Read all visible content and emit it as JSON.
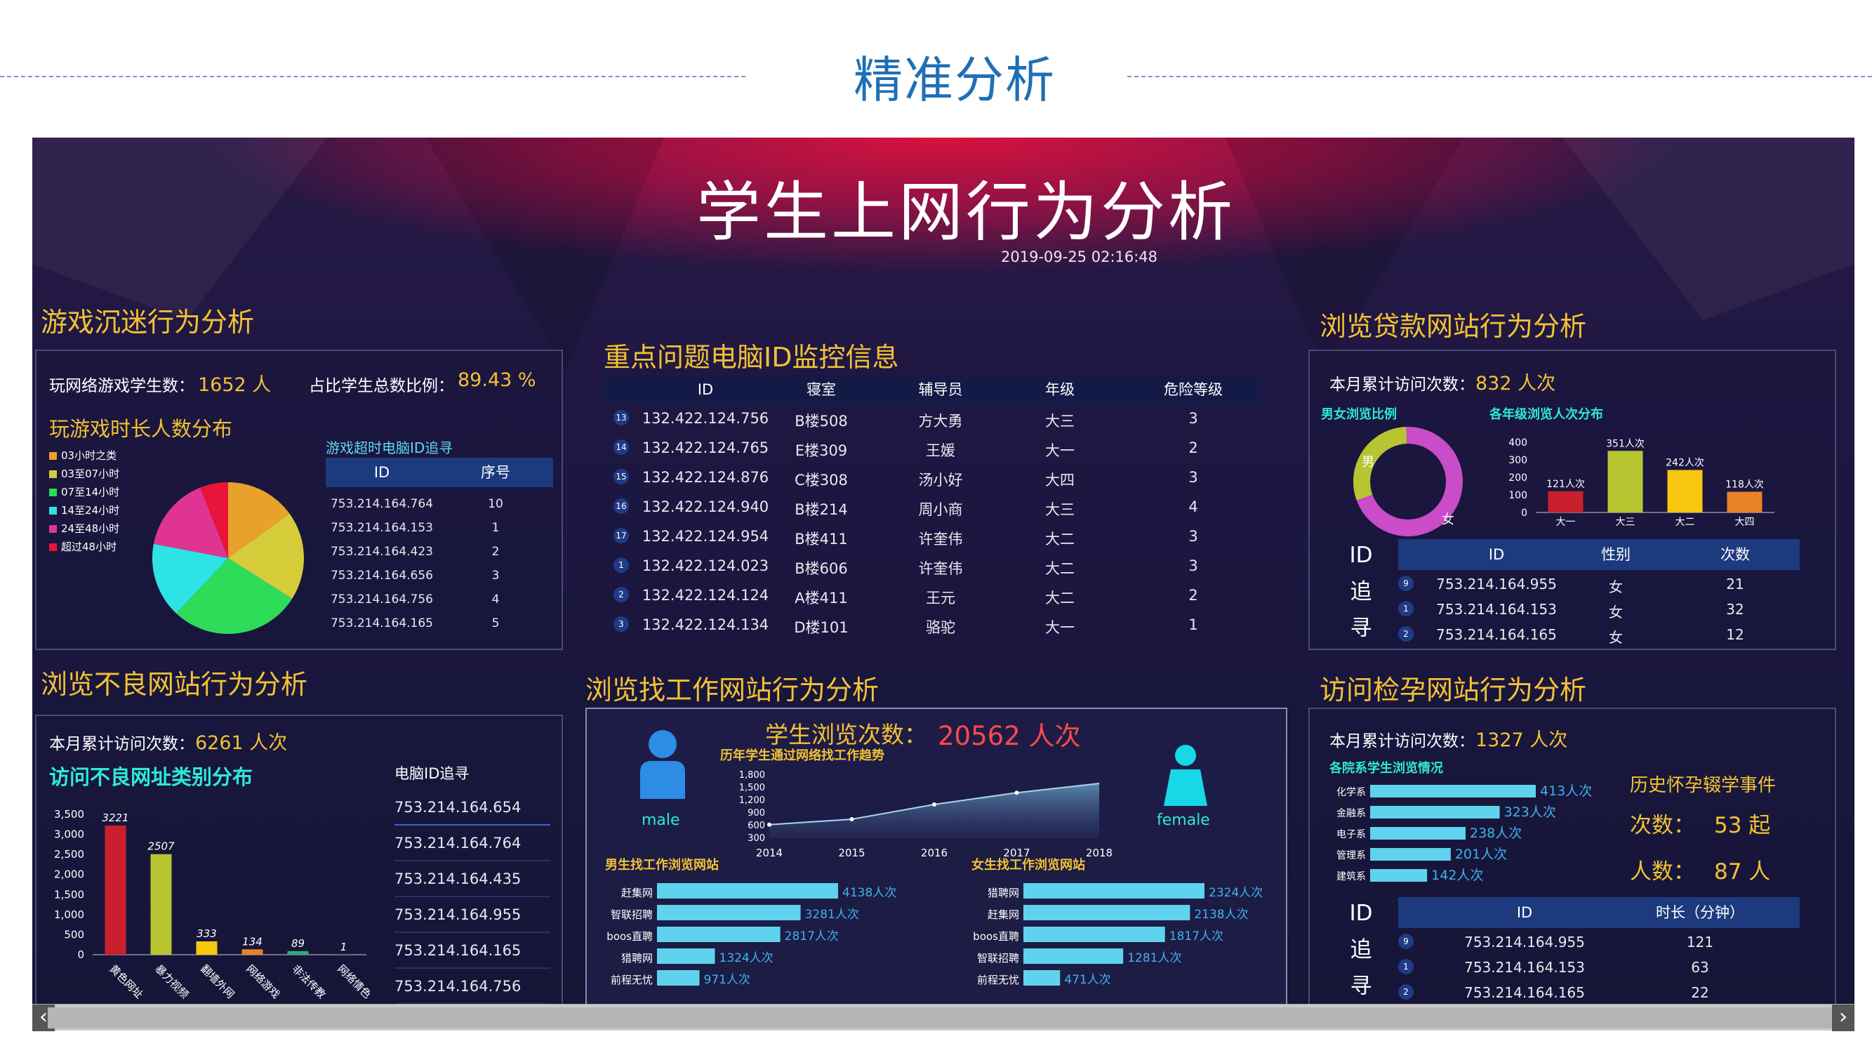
{
  "slide": {
    "title": "精准分析"
  },
  "dashboard": {
    "title": "学生上网行为分析",
    "timestamp": "2019-09-25 02:16:48"
  },
  "game": {
    "section_title": "游戏沉迷行为分析",
    "students_label": "玩网络游戏学生数：",
    "students_value": "1652  人",
    "ratio_label": "占比学生总数比例：",
    "ratio_value": "89.43  %",
    "pie_title": "玩游戏时长人数分布",
    "legend": [
      {
        "label": "03小时之类",
        "color": "#e8a12a"
      },
      {
        "label": "03至07小时",
        "color": "#d6cc3a"
      },
      {
        "label": "07至14小时",
        "color": "#2fdc5a"
      },
      {
        "label": "14至24小时",
        "color": "#2de3e6"
      },
      {
        "label": "24至48小时",
        "color": "#e03494"
      },
      {
        "label": "超过48小时",
        "color": "#e8143a"
      }
    ],
    "pie_values": [
      15,
      19,
      28,
      16,
      16,
      6
    ],
    "trace_title": "游戏超时电脑ID追寻",
    "trace_headers": [
      "ID",
      "序号"
    ],
    "trace_rows": [
      [
        "753.214.164.764",
        "10"
      ],
      [
        "753.214.164.153",
        "1"
      ],
      [
        "753.214.164.423",
        "2"
      ],
      [
        "753.214.164.656",
        "3"
      ],
      [
        "753.214.164.756",
        "4"
      ],
      [
        "753.214.164.165",
        "5"
      ]
    ]
  },
  "monitor": {
    "section_title": "重点问题电脑ID监控信息",
    "headers": [
      "ID",
      "寝室",
      "辅导员",
      "年级",
      "危险等级"
    ],
    "rows": [
      {
        "no": "13",
        "id": "132.422.124.756",
        "room": "B楼508",
        "tutor": "方大勇",
        "grade": "大三",
        "level": "3"
      },
      {
        "no": "14",
        "id": "132.422.124.765",
        "room": "E楼309",
        "tutor": "王媛",
        "grade": "大一",
        "level": "2"
      },
      {
        "no": "15",
        "id": "132.422.124.876",
        "room": "C楼308",
        "tutor": "汤小好",
        "grade": "大四",
        "level": "3"
      },
      {
        "no": "16",
        "id": "132.422.124.940",
        "room": "B楼214",
        "tutor": "周小商",
        "grade": "大三",
        "level": "4"
      },
      {
        "no": "17",
        "id": "132.422.124.954",
        "room": "B楼411",
        "tutor": "许奎伟",
        "grade": "大二",
        "level": "3"
      },
      {
        "no": "1",
        "id": "132.422.124.023",
        "room": "B楼606",
        "tutor": "许奎伟",
        "grade": "大二",
        "level": "3"
      },
      {
        "no": "2",
        "id": "132.422.124.124",
        "room": "A楼411",
        "tutor": "王元",
        "grade": "大二",
        "level": "2"
      },
      {
        "no": "3",
        "id": "132.422.124.134",
        "room": "D楼101",
        "tutor": "骆驼",
        "grade": "大一",
        "level": "1"
      }
    ]
  },
  "loan": {
    "section_title": "浏览贷款网站行为分析",
    "visits_label": "本月累计访问次数：",
    "visits_value": "832  人次",
    "gender_title": "男女浏览比例",
    "male_label": "男",
    "female_label": "女",
    "gender_values": [
      30,
      70
    ],
    "grade_title": "各年级浏览人次分布",
    "trace_side": [
      "ID",
      "追",
      "寻"
    ],
    "trace_headers": [
      "ID",
      "性别",
      "次数"
    ],
    "trace_rows": [
      {
        "no": "9",
        "id": "753.214.164.955",
        "sex": "女",
        "count": "21"
      },
      {
        "no": "1",
        "id": "753.214.164.153",
        "sex": "女",
        "count": "32"
      },
      {
        "no": "2",
        "id": "753.214.164.165",
        "sex": "女",
        "count": "12"
      }
    ]
  },
  "bad": {
    "section_title": "浏览不良网站行为分析",
    "visits_label": "本月累计访问次数：",
    "visits_value": "6261  人次",
    "chart_title": "访问不良网址类别分布",
    "trace_title": "电脑ID追寻",
    "trace_rows": [
      "753.214.164.654",
      "753.214.164.764",
      "753.214.164.435",
      "753.214.164.955",
      "753.214.164.165",
      "753.214.164.756"
    ]
  },
  "job": {
    "section_title": "浏览找工作网站行为分析",
    "visits_label": "学生浏览次数：",
    "visits_value": "20562  人次",
    "trend_title": "历年学生通过网络找工作趋势",
    "male_caption": "male",
    "female_caption": "female",
    "male_sites_title": "男生找工作浏览网站",
    "female_sites_title": "女生找工作浏览网站"
  },
  "pregnancy": {
    "section_title": "访问检孕网站行为分析",
    "visits_label": "本月累计访问次数：",
    "visits_value": "1327  人次",
    "dept_title": "各院系学生浏览情况",
    "history_title": "历史怀孕辍学事件",
    "events_label": "次数：",
    "events_value": "53  起",
    "people_label": "人数：",
    "people_value": "87  人",
    "trace_side": [
      "ID",
      "追",
      "寻"
    ],
    "trace_headers": [
      "ID",
      "时长（分钟）"
    ],
    "trace_rows": [
      {
        "no": "9",
        "id": "753.214.164.955",
        "duration": "121"
      },
      {
        "no": "1",
        "id": "753.214.164.153",
        "duration": "63"
      },
      {
        "no": "2",
        "id": "753.214.164.165",
        "duration": "22"
      }
    ]
  },
  "chart_data": [
    {
      "type": "bar",
      "categories": [
        "大一",
        "大三",
        "大二",
        "大四"
      ],
      "values": [
        121,
        351,
        242,
        118
      ],
      "data_labels": [
        "121人次",
        "351人次",
        "242人次",
        "118人次"
      ],
      "colors": [
        "#c9202e",
        "#b6c530",
        "#f8c60f",
        "#e8832a"
      ],
      "yticks": [
        "400",
        "300",
        "200",
        "100",
        "0"
      ],
      "ylim": [
        0,
        400
      ]
    },
    {
      "type": "bar",
      "categories": [
        "黄色网址",
        "暴力视频",
        "翻墙外网",
        "网络游戏",
        "非法传教",
        "网络情色"
      ],
      "values": [
        3221,
        2507,
        333,
        134,
        89,
        1
      ],
      "colors": [
        "#c9202e",
        "#b6c530",
        "#f8c60f",
        "#e8832a",
        "#27b27b",
        "#777777"
      ],
      "yticks": [
        "3,500",
        "3,000",
        "2,500",
        "2,000",
        "1,500",
        "1,000",
        "500",
        "0"
      ],
      "ylim": [
        0,
        3500
      ]
    },
    {
      "type": "area",
      "x": [
        "2014",
        "2015",
        "2016",
        "2017",
        "2018"
      ],
      "values": [
        620,
        750,
        1100,
        1380,
        1600
      ],
      "yticks": [
        "1,800",
        "1,500",
        "1,200",
        "900",
        "600",
        "300"
      ],
      "ylim": [
        300,
        1800
      ]
    },
    {
      "type": "bar",
      "orientation": "horizontal",
      "categories": [
        "赶集网",
        "智联招聘",
        "boos直聘",
        "猎聘网",
        "前程无忧"
      ],
      "values": [
        4138,
        3281,
        2817,
        1324,
        971
      ],
      "data_labels": [
        "4138人次",
        "3281人次",
        "2817人次",
        "1324人次",
        "971人次"
      ]
    },
    {
      "type": "bar",
      "orientation": "horizontal",
      "categories": [
        "猎聘网",
        "赶集网",
        "boos直聘",
        "智联招聘",
        "前程无忧"
      ],
      "values": [
        2324,
        2138,
        1817,
        1281,
        471
      ],
      "data_labels": [
        "2324人次",
        "2138人次",
        "1817人次",
        "1281人次",
        "471人次"
      ]
    },
    {
      "type": "bar",
      "orientation": "horizontal",
      "categories": [
        "化学系",
        "金融系",
        "电子系",
        "管理系",
        "建筑系"
      ],
      "values": [
        413,
        323,
        238,
        201,
        142
      ],
      "data_labels": [
        "413人次",
        "323人次",
        "238人次",
        "201人次",
        "142人次"
      ]
    }
  ]
}
